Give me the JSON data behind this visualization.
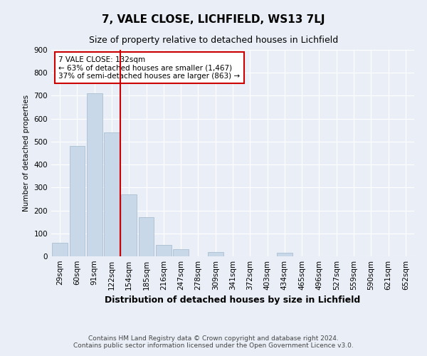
{
  "title1": "7, VALE CLOSE, LICHFIELD, WS13 7LJ",
  "title2": "Size of property relative to detached houses in Lichfield",
  "xlabel": "Distribution of detached houses by size in Lichfield",
  "ylabel": "Number of detached properties",
  "categories": [
    "29sqm",
    "60sqm",
    "91sqm",
    "122sqm",
    "154sqm",
    "185sqm",
    "216sqm",
    "247sqm",
    "278sqm",
    "309sqm",
    "341sqm",
    "372sqm",
    "403sqm",
    "434sqm",
    "465sqm",
    "496sqm",
    "527sqm",
    "559sqm",
    "590sqm",
    "621sqm",
    "652sqm"
  ],
  "values": [
    60,
    480,
    710,
    540,
    270,
    170,
    50,
    30,
    0,
    20,
    0,
    0,
    0,
    15,
    0,
    0,
    0,
    0,
    0,
    0,
    0
  ],
  "bar_color": "#c8d8e8",
  "bar_edge_color": "#a0b8cc",
  "vline_x": 3.5,
  "vline_color": "#cc0000",
  "ylim": [
    0,
    900
  ],
  "yticks": [
    0,
    100,
    200,
    300,
    400,
    500,
    600,
    700,
    800,
    900
  ],
  "annotation_text": "7 VALE CLOSE: 132sqm\n← 63% of detached houses are smaller (1,467)\n37% of semi-detached houses are larger (863) →",
  "annotation_box_color": "#ffffff",
  "annotation_edge_color": "#cc0000",
  "footer1": "Contains HM Land Registry data © Crown copyright and database right 2024.",
  "footer2": "Contains public sector information licensed under the Open Government Licence v3.0.",
  "bg_color": "#eaeff7",
  "plot_bg_color": "#eaeff7",
  "grid_color": "#ffffff",
  "title1_fontsize": 11,
  "title2_fontsize": 9
}
